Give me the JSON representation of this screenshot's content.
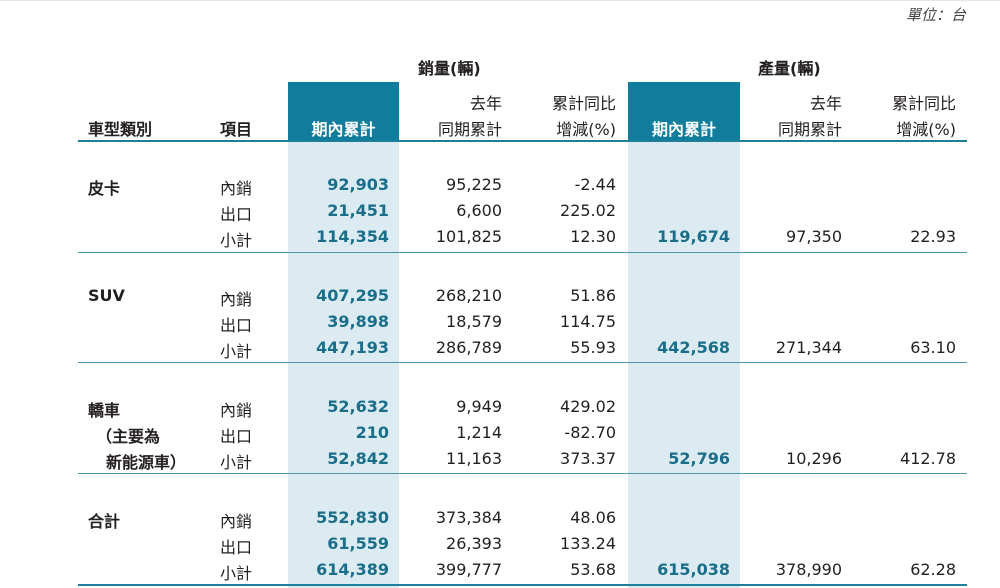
{
  "unit_label": "單位：台",
  "groups": {
    "sales": "銷量(輛)",
    "production": "產量(輛)"
  },
  "headers": {
    "category": "車型類別",
    "item": "項目",
    "sales_cur": "期內累計",
    "sales_prev_line1": "去年",
    "sales_prev_line2": "同期累計",
    "sales_chg_line1": "累計同比",
    "sales_chg_line2": "增減(%)",
    "prod_cur": "期內累計",
    "prod_prev_line1": "去年",
    "prod_prev_line2": "同期累計",
    "prod_chg_line1": "累計同比",
    "prod_chg_line2": "增減(%)"
  },
  "sections": [
    {
      "category_lines": [
        "皮卡"
      ],
      "rows": [
        {
          "item": "內銷",
          "sales_cur": "92,903",
          "sales_prev": "95,225",
          "sales_chg": "-2.44"
        },
        {
          "item": "出口",
          "sales_cur": "21,451",
          "sales_prev": "6,600",
          "sales_chg": "225.02"
        },
        {
          "item": "小計",
          "sales_cur": "114,354",
          "sales_prev": "101,825",
          "sales_chg": "12.30",
          "prod_cur": "119,674",
          "prod_prev": "97,350",
          "prod_chg": "22.93"
        }
      ]
    },
    {
      "category_lines": [
        "SUV"
      ],
      "rows": [
        {
          "item": "內銷",
          "sales_cur": "407,295",
          "sales_prev": "268,210",
          "sales_chg": "51.86"
        },
        {
          "item": "出口",
          "sales_cur": "39,898",
          "sales_prev": "18,579",
          "sales_chg": "114.75"
        },
        {
          "item": "小計",
          "sales_cur": "447,193",
          "sales_prev": "286,789",
          "sales_chg": "55.93",
          "prod_cur": "442,568",
          "prod_prev": "271,344",
          "prod_chg": "63.10"
        }
      ]
    },
    {
      "category_lines": [
        "轎車",
        "（主要為",
        "新能源車）"
      ],
      "rows": [
        {
          "item": "內銷",
          "sales_cur": "52,632",
          "sales_prev": "9,949",
          "sales_chg": "429.02"
        },
        {
          "item": "出口",
          "sales_cur": "210",
          "sales_prev": "1,214",
          "sales_chg": "-82.70"
        },
        {
          "item": "小計",
          "sales_cur": "52,842",
          "sales_prev": "11,163",
          "sales_chg": "373.37",
          "prod_cur": "52,796",
          "prod_prev": "10,296",
          "prod_chg": "412.78"
        }
      ]
    },
    {
      "category_lines": [
        "合計"
      ],
      "rows": [
        {
          "item": "內銷",
          "sales_cur": "552,830",
          "sales_prev": "373,384",
          "sales_chg": "48.06"
        },
        {
          "item": "出口",
          "sales_cur": "61,559",
          "sales_prev": "26,393",
          "sales_chg": "133.24"
        },
        {
          "item": "小計",
          "sales_cur": "614,389",
          "sales_prev": "399,777",
          "sales_chg": "53.68",
          "prod_cur": "615,038",
          "prod_prev": "378,990",
          "prod_chg": "62.28"
        }
      ]
    }
  ]
}
